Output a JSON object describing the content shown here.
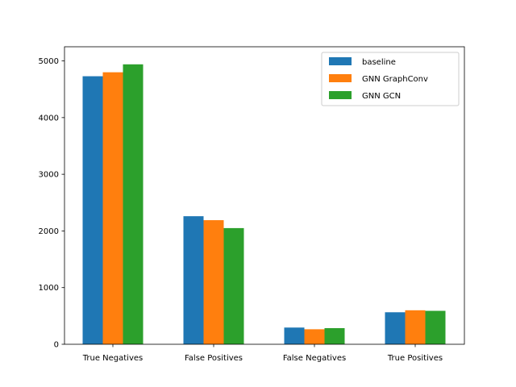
{
  "chart_data": {
    "type": "bar",
    "categories": [
      "True Negatives",
      "False Positives",
      "False Negatives",
      "True Positives"
    ],
    "series": [
      {
        "name": "baseline",
        "color": "#1f77b4",
        "values": [
          4730,
          2260,
          295,
          565
        ]
      },
      {
        "name": "GNN GraphConv",
        "color": "#ff7f0e",
        "values": [
          4800,
          2190,
          265,
          600
        ]
      },
      {
        "name": "GNN GCN",
        "color": "#2ca02c",
        "values": [
          4940,
          2050,
          285,
          590
        ]
      }
    ],
    "y_ticks": [
      "0",
      "1000",
      "2000",
      "3000",
      "4000",
      "5000"
    ],
    "ylim": [
      0,
      5250
    ],
    "grid": false,
    "legend_position": "top-right"
  }
}
